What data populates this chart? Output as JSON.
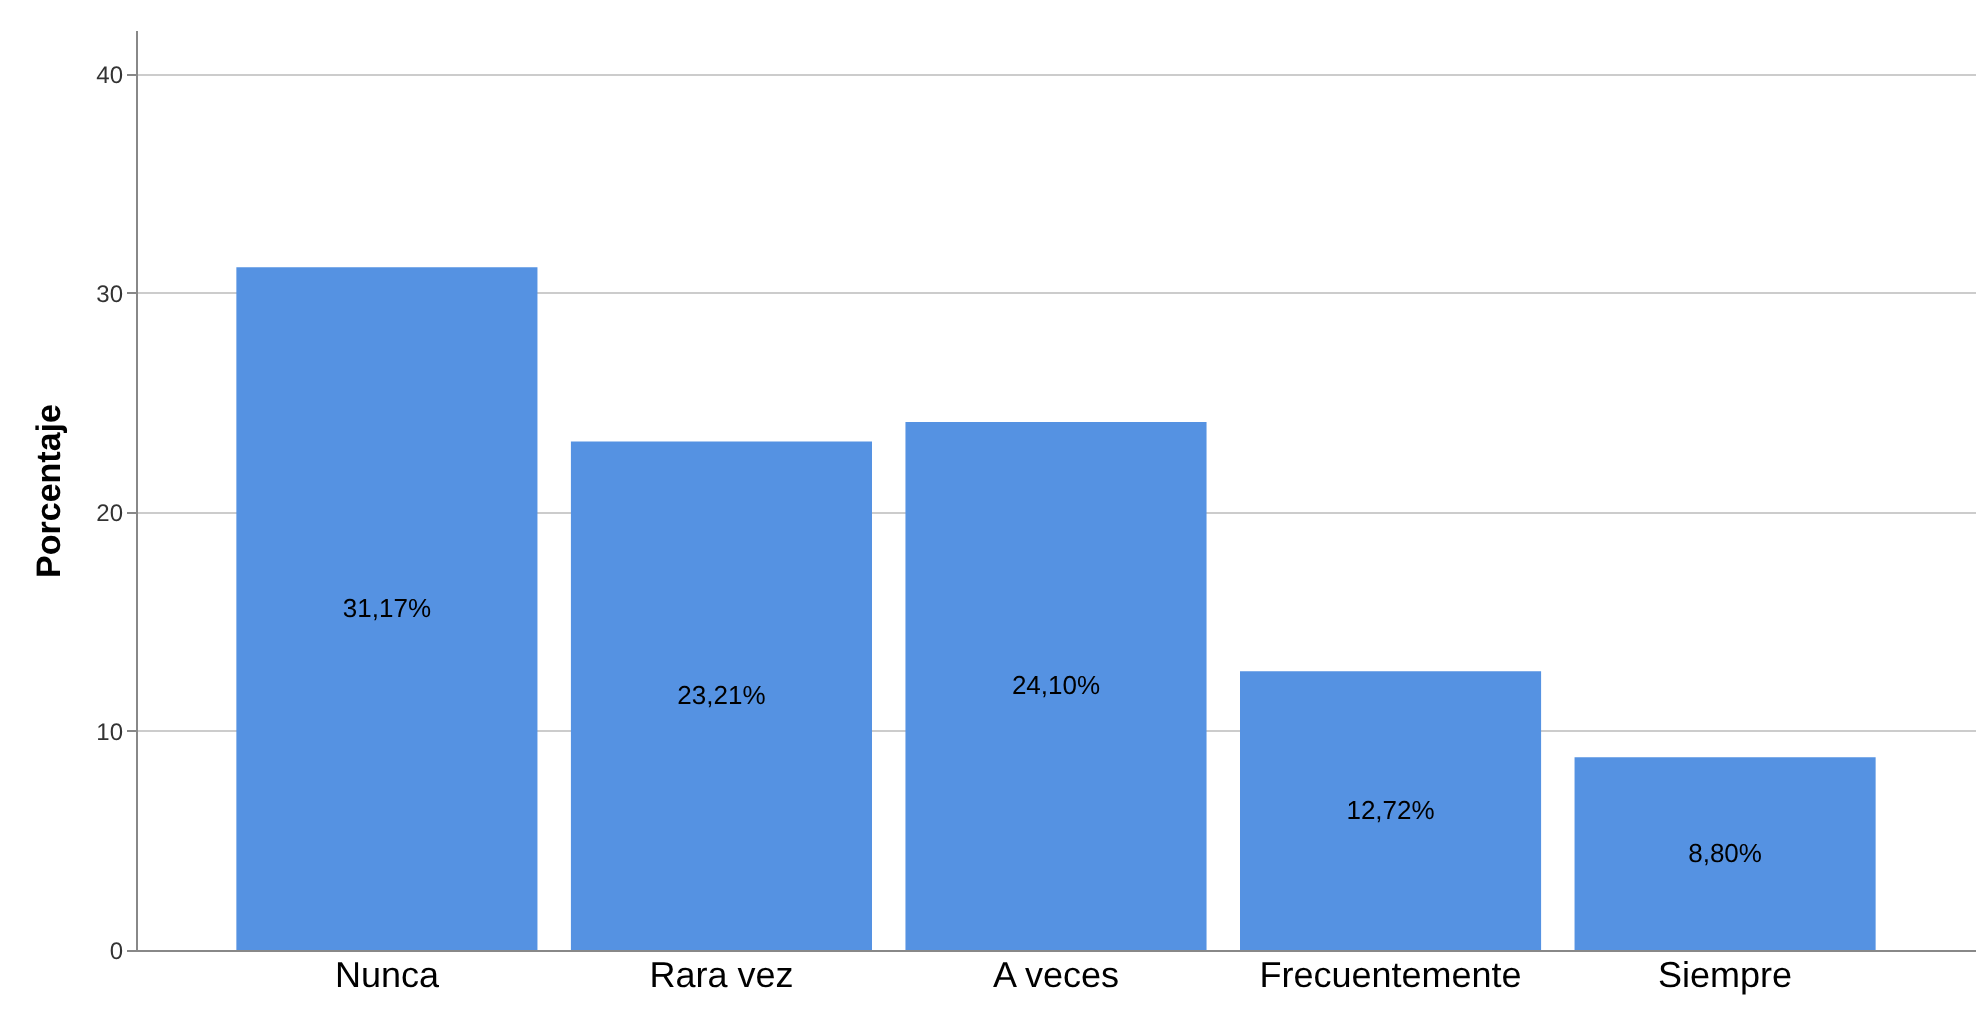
{
  "chart_data": {
    "type": "bar",
    "ylabel": "Porcentaje",
    "categories": [
      "Nunca",
      "Rara vez",
      "A veces",
      "Frecuentemente",
      "Siempre"
    ],
    "values": [
      31.17,
      23.21,
      24.1,
      12.72,
      8.8
    ],
    "value_labels": [
      "31,17%",
      "23,21%",
      "24,10%",
      "12,72%",
      "8,80%"
    ],
    "color": "#5592e2",
    "ylim": [
      0,
      42
    ],
    "yticks": [
      0,
      10,
      20,
      30,
      40
    ],
    "grid": "y"
  }
}
